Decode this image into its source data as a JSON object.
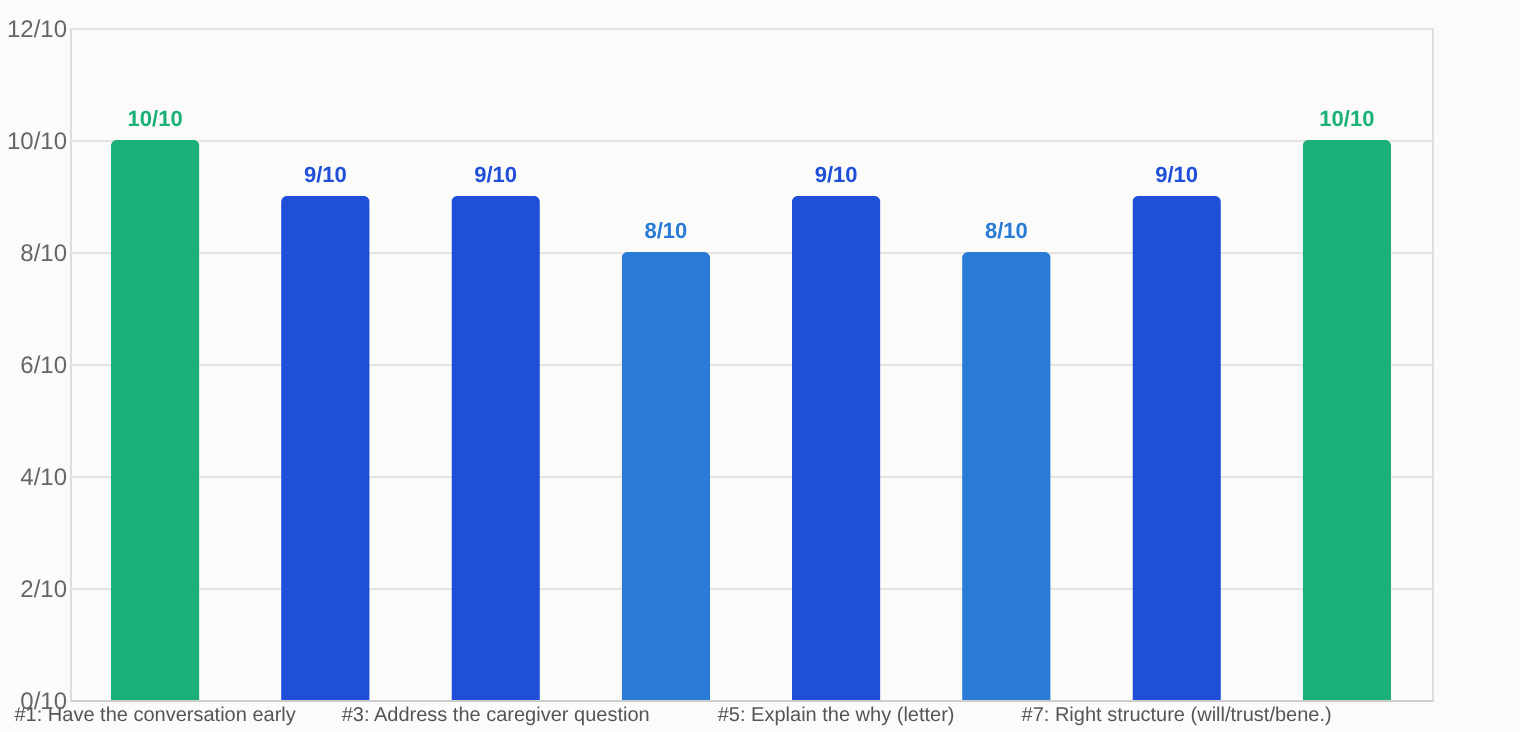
{
  "chart_data": {
    "type": "bar",
    "categories": [
      "#1: Have the conversation early",
      null,
      "#3: Address the caregiver question",
      null,
      "#5: Explain the why (letter)",
      null,
      "#7: Right structure (will/trust/bene.)",
      null
    ],
    "values": [
      1.0,
      0.9,
      0.9,
      0.8,
      0.9,
      0.8,
      0.9,
      1.0
    ],
    "colors": [
      "#1bb07a",
      "#1f4fd8",
      "#1f4fd8",
      "#2a7bd6",
      "#1f4fd8",
      "#2a7bd6",
      "#1f4fd8",
      "#1bb07a"
    ],
    "value_labels": [
      "10/10",
      "9/10",
      "9/10",
      "8/10",
      "9/10",
      "8/10",
      "9/10",
      "10/10"
    ],
    "ylim": [
      0,
      1.2
    ],
    "yticks": [
      {
        "value": 0,
        "label": "0/10"
      },
      {
        "value": 0.2,
        "label": "2/10"
      },
      {
        "value": 0.4,
        "label": "4/10"
      },
      {
        "value": 0.6,
        "label": "6/10"
      },
      {
        "value": 0.8,
        "label": "8/10"
      },
      {
        "value": 1.0,
        "label": "10/10"
      },
      {
        "value": 1.2,
        "label": "12/10"
      }
    ],
    "grid": "y"
  }
}
